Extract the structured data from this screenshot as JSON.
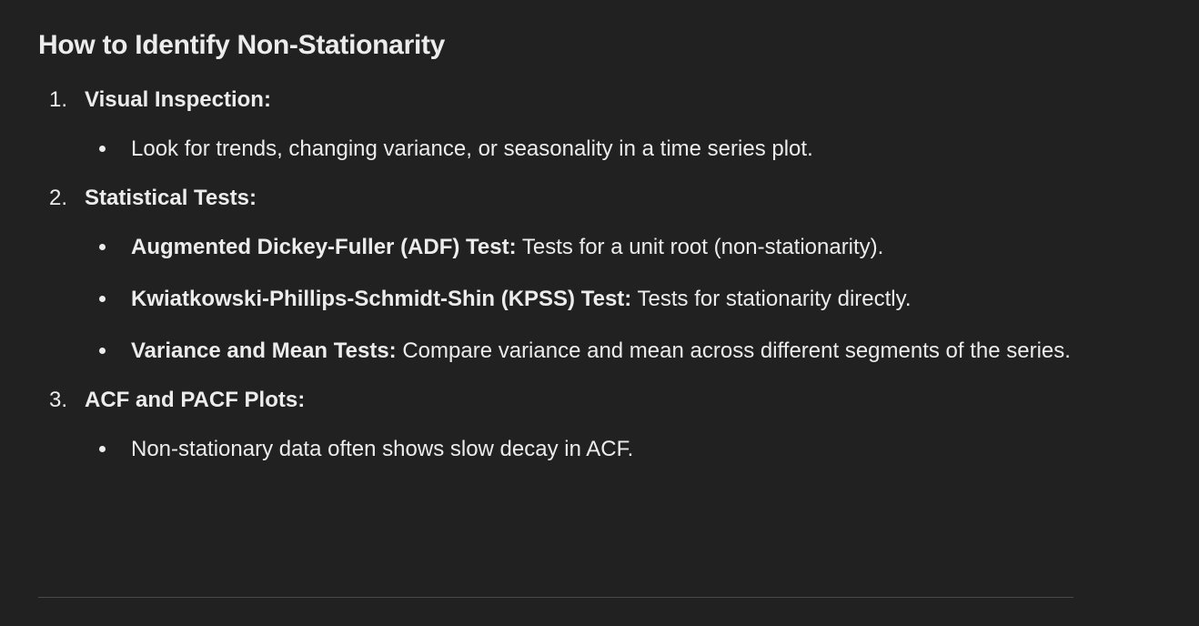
{
  "heading": "How to Identify Non-Stationarity",
  "steps": [
    {
      "number": "1.",
      "title": "Visual Inspection:",
      "bullets": [
        {
          "bold": "",
          "text": "Look for trends, changing variance, or seasonality in a time series plot."
        }
      ]
    },
    {
      "number": "2.",
      "title": "Statistical Tests:",
      "bullets": [
        {
          "bold": "Augmented Dickey-Fuller (ADF) Test:",
          "text": " Tests for a unit root (non-stationarity)."
        },
        {
          "bold": "Kwiatkowski-Phillips-Schmidt-Shin (KPSS) Test:",
          "text": " Tests for stationarity directly."
        },
        {
          "bold": "Variance and Mean Tests:",
          "text": " Compare variance and mean across different segments of the series."
        }
      ]
    },
    {
      "number": "3.",
      "title": "ACF and PACF Plots:",
      "bullets": [
        {
          "bold": "",
          "text": "Non-stationary data often shows slow decay in ACF."
        }
      ]
    }
  ]
}
